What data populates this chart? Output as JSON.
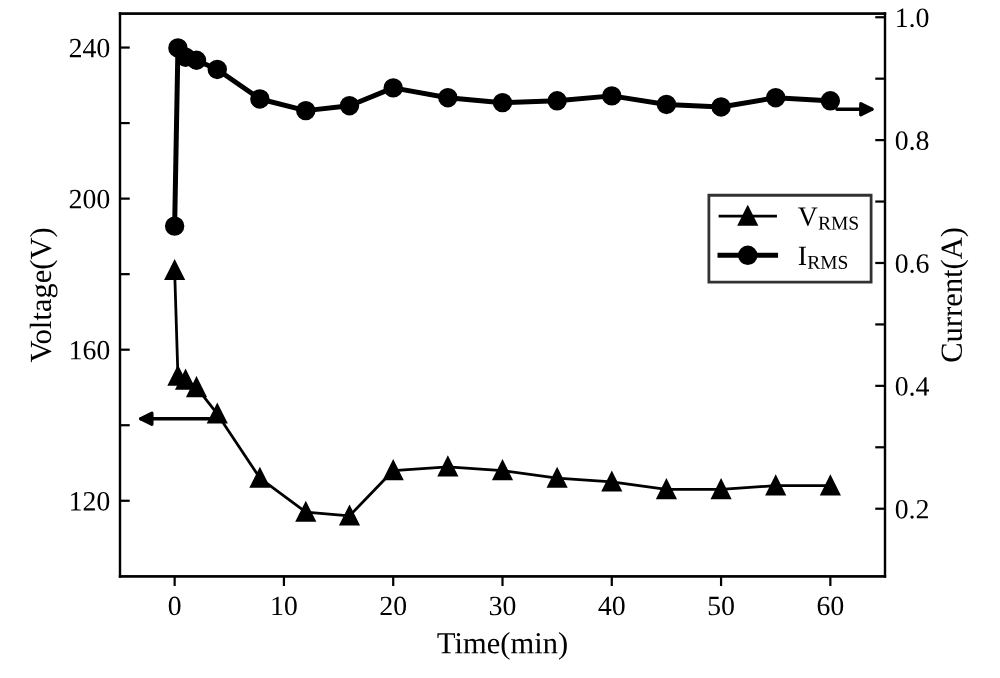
{
  "chart_data": {
    "type": "line",
    "xlabel": "Time(min)",
    "ylabel": "Voltage(V)",
    "y2label": "Current(A)",
    "xlim": [
      -5,
      65
    ],
    "xticks": [
      0,
      10,
      20,
      30,
      40,
      50,
      60
    ],
    "ylim": [
      100,
      249
    ],
    "yticks": [
      {
        "value": 120,
        "label": "120"
      },
      {
        "value": 140,
        "label": null
      },
      {
        "value": 160,
        "label": "160"
      },
      {
        "value": 180,
        "label": null
      },
      {
        "value": 200,
        "label": "200"
      },
      {
        "value": 220,
        "label": null
      },
      {
        "value": 240,
        "label": "240"
      }
    ],
    "y2lim": [
      0.09,
      1.006
    ],
    "y2ticks": [
      {
        "value": 0.2,
        "label": "0.2"
      },
      {
        "value": 0.3,
        "label": null
      },
      {
        "value": 0.4,
        "label": "0.4"
      },
      {
        "value": 0.5,
        "label": null
      },
      {
        "value": 0.6,
        "label": "0.6"
      },
      {
        "value": 0.7,
        "label": null
      },
      {
        "value": 0.8,
        "label": "0.8"
      },
      {
        "value": 0.9,
        "label": null
      },
      {
        "value": 1.0,
        "label": "1.0"
      }
    ],
    "legend": "right",
    "grid": false,
    "series": [
      {
        "name": "V$_{RMS}$",
        "color": "#000000",
        "marker": "triangle",
        "axis": "y",
        "x": [
          0,
          0.3,
          1,
          2,
          3.9,
          7.8,
          12,
          16,
          20,
          25,
          30,
          35,
          40,
          45,
          50,
          55,
          60
        ],
        "values": [
          181,
          153,
          152,
          150,
          143,
          126,
          117,
          116,
          128,
          129,
          128,
          126,
          125,
          123,
          123,
          124,
          124
        ]
      },
      {
        "name": "I$_{RMS}$",
        "color": "#000000",
        "marker": "circle",
        "axis": "y2",
        "x": [
          0,
          0.3,
          1,
          2,
          3.9,
          7.8,
          12,
          16,
          20,
          25,
          30,
          35,
          40,
          45,
          50,
          55,
          60
        ],
        "values": [
          0.66,
          0.95,
          0.935,
          0.93,
          0.915,
          0.867,
          0.848,
          0.856,
          0.885,
          0.869,
          0.861,
          0.864,
          0.872,
          0.858,
          0.854,
          0.869,
          0.864
        ]
      }
    ]
  }
}
